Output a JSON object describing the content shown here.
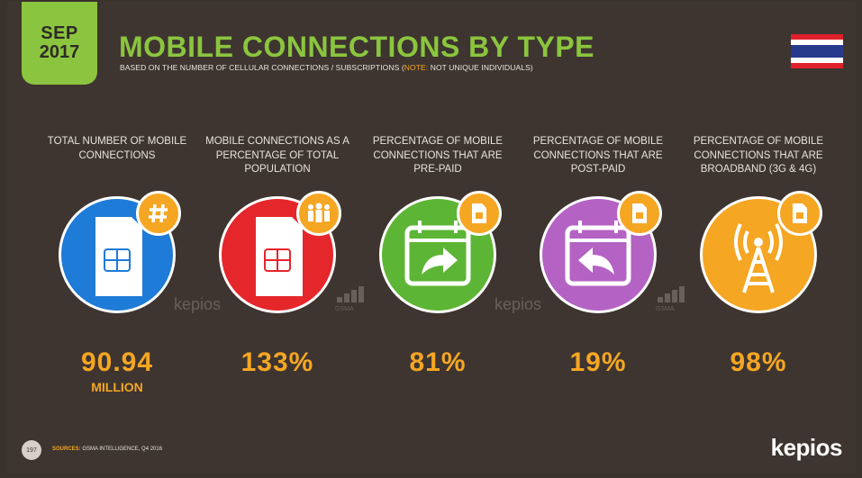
{
  "header": {
    "month": "SEP",
    "year": "2017",
    "title": "MOBILE CONNECTIONS BY TYPE",
    "subtitle_main": "BASED ON THE NUMBER OF CELLULAR CONNECTIONS / SUBSCRIPTIONS (",
    "subtitle_note": "NOTE:",
    "subtitle_tail": " NOT UNIQUE INDIVIDUALS)"
  },
  "metrics": [
    {
      "heading": "TOTAL NUMBER OF MOBILE CONNECTIONS",
      "value": "90.94",
      "sub": "MILLION",
      "color": "#1e7bd8",
      "icon": "sim-card-icon",
      "badge": "hash-icon"
    },
    {
      "heading": "MOBILE CONNECTIONS AS A PERCENTAGE OF TOTAL POPULATION",
      "value": "133%",
      "sub": "",
      "color": "#e5262b",
      "icon": "sim-card-icon",
      "badge": "people-icon"
    },
    {
      "heading": "PERCENTAGE OF MOBILE CONNECTIONS THAT ARE PRE-PAID",
      "value": "81%",
      "sub": "",
      "color": "#5db535",
      "icon": "calendar-forward-icon",
      "badge": "sim-icon"
    },
    {
      "heading": "PERCENTAGE OF MOBILE CONNECTIONS THAT ARE POST-PAID",
      "value": "19%",
      "sub": "",
      "color": "#b463c4",
      "icon": "calendar-back-icon",
      "badge": "sim-icon"
    },
    {
      "heading": "PERCENTAGE OF MOBILE CONNECTIONS THAT ARE BROADBAND (3G & 4G)",
      "value": "98%",
      "sub": "",
      "color": "#f5a623",
      "icon": "antenna-tower-icon",
      "badge": "sim-icon"
    }
  ],
  "watermarks": {
    "kepios": "kepios",
    "gsma": "GSMA"
  },
  "footer": {
    "page": "197",
    "source_label": "SOURCES:",
    "source_text": " GSMA INTELLIGENCE, Q4 2016",
    "brand": "kepios"
  },
  "colors": {
    "accent_green": "#8bc53f",
    "accent_orange": "#f5a623",
    "background": "#3e3530"
  }
}
